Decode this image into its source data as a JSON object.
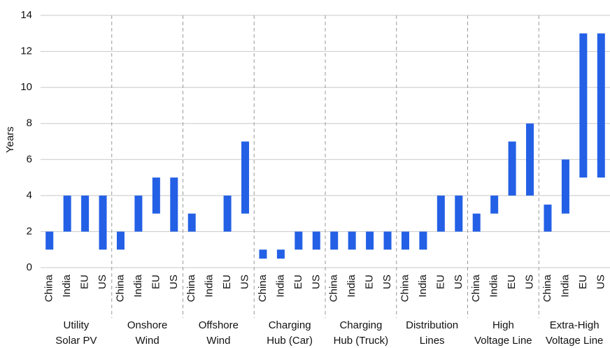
{
  "chart_data": {
    "type": "range_bar",
    "y_label": "Years",
    "categories": [
      "China",
      "India",
      "EU",
      "US"
    ],
    "groups": [
      {
        "name": [
          "Utility",
          "Solar PV"
        ],
        "low": [
          1,
          2,
          2,
          1
        ],
        "high": [
          2,
          4,
          4,
          4
        ]
      },
      {
        "name": [
          "Onshore",
          "Wind"
        ],
        "low": [
          1,
          2,
          3,
          2
        ],
        "high": [
          2,
          4,
          5,
          5
        ]
      },
      {
        "name": [
          "Offshore",
          "Wind"
        ],
        "low": [
          2,
          null,
          2,
          3
        ],
        "high": [
          3,
          null,
          4,
          7
        ]
      },
      {
        "name": [
          "Charging",
          "Hub (Car)"
        ],
        "low": [
          0.5,
          0.5,
          1,
          1
        ],
        "high": [
          1,
          1,
          2,
          2
        ]
      },
      {
        "name": [
          "Charging",
          "Hub (Truck)"
        ],
        "low": [
          1,
          1,
          1,
          1
        ],
        "high": [
          2,
          2,
          2,
          2
        ]
      },
      {
        "name": [
          "Distribution",
          "Lines"
        ],
        "low": [
          1,
          1,
          2,
          2
        ],
        "high": [
          2,
          2,
          4,
          4
        ]
      },
      {
        "name": [
          "High",
          "Voltage Line"
        ],
        "low": [
          2,
          3,
          4,
          4
        ],
        "high": [
          3,
          4,
          7,
          8
        ]
      },
      {
        "name": [
          "Extra-High",
          "Voltage Line"
        ],
        "low": [
          2,
          3,
          5,
          5
        ],
        "high": [
          3.5,
          6,
          13,
          13
        ]
      }
    ],
    "color": "#2460e6",
    "ylim": [
      0,
      14
    ],
    "yticks": [
      0,
      2,
      4,
      6,
      8,
      10,
      12,
      14
    ],
    "grid": true
  }
}
